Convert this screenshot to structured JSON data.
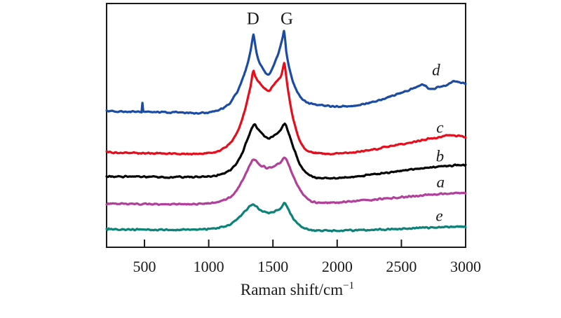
{
  "chart_data": {
    "type": "line",
    "description": "Raman spectra of five samples (a-e) showing D and G bands, stacked vertically with arbitrary intensity offsets; no y-axis ticks or labels.",
    "xlabel": "Raman shift/cm",
    "xlabel_superscript": "−1",
    "x_range": [
      205,
      3000
    ],
    "x_ticks": [
      500,
      1000,
      1500,
      2000,
      2500,
      3000
    ],
    "frame_color": "#1a1a1a",
    "peak_annotations": [
      {
        "label": "D",
        "raman_shift": 1345,
        "label_u": 0.937
      },
      {
        "label": "G",
        "raman_shift": 1608,
        "label_u": 0.937
      }
    ],
    "series": [
      {
        "name": "e",
        "color": "#0d8278",
        "label_raman": 2795,
        "label_u": 0.129,
        "points": [
          [
            205,
            0.074
          ],
          [
            400,
            0.073
          ],
          [
            600,
            0.072
          ],
          [
            800,
            0.072
          ],
          [
            1000,
            0.075
          ],
          [
            1100,
            0.082
          ],
          [
            1180,
            0.098
          ],
          [
            1250,
            0.13
          ],
          [
            1300,
            0.158
          ],
          [
            1348,
            0.174
          ],
          [
            1395,
            0.155
          ],
          [
            1440,
            0.145
          ],
          [
            1472,
            0.142
          ],
          [
            1520,
            0.15
          ],
          [
            1560,
            0.16
          ],
          [
            1592,
            0.18
          ],
          [
            1625,
            0.15
          ],
          [
            1668,
            0.112
          ],
          [
            1730,
            0.082
          ],
          [
            1810,
            0.07
          ],
          [
            1920,
            0.068
          ],
          [
            2100,
            0.069
          ],
          [
            2300,
            0.072
          ],
          [
            2500,
            0.076
          ],
          [
            2700,
            0.08
          ],
          [
            2900,
            0.084
          ],
          [
            3000,
            0.084
          ]
        ]
      },
      {
        "name": "a",
        "color": "#b0409a",
        "label_raman": 2805,
        "label_u": 0.267,
        "points": [
          [
            205,
            0.179
          ],
          [
            400,
            0.178
          ],
          [
            600,
            0.177
          ],
          [
            800,
            0.177
          ],
          [
            1000,
            0.18
          ],
          [
            1100,
            0.19
          ],
          [
            1180,
            0.212
          ],
          [
            1250,
            0.26
          ],
          [
            1300,
            0.315
          ],
          [
            1350,
            0.359
          ],
          [
            1395,
            0.34
          ],
          [
            1440,
            0.328
          ],
          [
            1472,
            0.325
          ],
          [
            1520,
            0.337
          ],
          [
            1560,
            0.348
          ],
          [
            1592,
            0.368
          ],
          [
            1625,
            0.335
          ],
          [
            1665,
            0.285
          ],
          [
            1725,
            0.225
          ],
          [
            1800,
            0.19
          ],
          [
            1900,
            0.183
          ],
          [
            2050,
            0.186
          ],
          [
            2250,
            0.194
          ],
          [
            2450,
            0.203
          ],
          [
            2650,
            0.212
          ],
          [
            2850,
            0.22
          ],
          [
            3000,
            0.222
          ]
        ]
      },
      {
        "name": "b",
        "color": "#050505",
        "label_raman": 2800,
        "label_u": 0.374,
        "points": [
          [
            205,
            0.291
          ],
          [
            400,
            0.29
          ],
          [
            600,
            0.288
          ],
          [
            800,
            0.288
          ],
          [
            1000,
            0.291
          ],
          [
            1100,
            0.3
          ],
          [
            1180,
            0.322
          ],
          [
            1250,
            0.375
          ],
          [
            1300,
            0.44
          ],
          [
            1350,
            0.501
          ],
          [
            1390,
            0.48
          ],
          [
            1440,
            0.455
          ],
          [
            1472,
            0.447
          ],
          [
            1520,
            0.465
          ],
          [
            1560,
            0.48
          ],
          [
            1592,
            0.507
          ],
          [
            1620,
            0.47
          ],
          [
            1660,
            0.41
          ],
          [
            1720,
            0.33
          ],
          [
            1800,
            0.292
          ],
          [
            1900,
            0.283
          ],
          [
            2050,
            0.285
          ],
          [
            2200,
            0.293
          ],
          [
            2400,
            0.307
          ],
          [
            2600,
            0.32
          ],
          [
            2800,
            0.331
          ],
          [
            2950,
            0.337
          ],
          [
            3000,
            0.336
          ]
        ]
      },
      {
        "name": "c",
        "color": "#e60e1d",
        "label_raman": 2800,
        "label_u": 0.491,
        "points": [
          [
            205,
            0.39
          ],
          [
            350,
            0.388
          ],
          [
            500,
            0.386
          ],
          [
            700,
            0.384
          ],
          [
            850,
            0.383
          ],
          [
            1000,
            0.386
          ],
          [
            1080,
            0.395
          ],
          [
            1150,
            0.42
          ],
          [
            1220,
            0.47
          ],
          [
            1280,
            0.56
          ],
          [
            1325,
            0.66
          ],
          [
            1340,
            0.706
          ],
          [
            1350,
            0.726
          ],
          [
            1362,
            0.7
          ],
          [
            1385,
            0.68
          ],
          [
            1430,
            0.655
          ],
          [
            1468,
            0.641
          ],
          [
            1510,
            0.67
          ],
          [
            1560,
            0.7
          ],
          [
            1578,
            0.733
          ],
          [
            1588,
            0.755
          ],
          [
            1600,
            0.715
          ],
          [
            1615,
            0.655
          ],
          [
            1650,
            0.545
          ],
          [
            1700,
            0.45
          ],
          [
            1760,
            0.398
          ],
          [
            1850,
            0.386
          ],
          [
            1950,
            0.384
          ],
          [
            2100,
            0.388
          ],
          [
            2250,
            0.398
          ],
          [
            2400,
            0.413
          ],
          [
            2550,
            0.428
          ],
          [
            2700,
            0.443
          ],
          [
            2850,
            0.457
          ],
          [
            2930,
            0.458
          ],
          [
            3000,
            0.45
          ]
        ]
      },
      {
        "name": "d",
        "color": "#1c4ba3",
        "label_raman": 2770,
        "label_u": 0.727,
        "points": [
          [
            205,
            0.558
          ],
          [
            300,
            0.556
          ],
          [
            420,
            0.556
          ],
          [
            470,
            0.557
          ],
          [
            478,
            0.56
          ],
          [
            484,
            0.594
          ],
          [
            490,
            0.56
          ],
          [
            500,
            0.556
          ],
          [
            600,
            0.554
          ],
          [
            750,
            0.553
          ],
          [
            900,
            0.551
          ],
          [
            1000,
            0.553
          ],
          [
            1080,
            0.563
          ],
          [
            1150,
            0.585
          ],
          [
            1220,
            0.635
          ],
          [
            1280,
            0.715
          ],
          [
            1320,
            0.79
          ],
          [
            1338,
            0.843
          ],
          [
            1348,
            0.875
          ],
          [
            1358,
            0.843
          ],
          [
            1380,
            0.78
          ],
          [
            1420,
            0.733
          ],
          [
            1462,
            0.708
          ],
          [
            1500,
            0.74
          ],
          [
            1545,
            0.8
          ],
          [
            1578,
            0.865
          ],
          [
            1586,
            0.886
          ],
          [
            1596,
            0.845
          ],
          [
            1610,
            0.78
          ],
          [
            1650,
            0.69
          ],
          [
            1700,
            0.628
          ],
          [
            1760,
            0.596
          ],
          [
            1850,
            0.583
          ],
          [
            1950,
            0.579
          ],
          [
            2050,
            0.578
          ],
          [
            2150,
            0.581
          ],
          [
            2250,
            0.592
          ],
          [
            2350,
            0.607
          ],
          [
            2450,
            0.625
          ],
          [
            2550,
            0.643
          ],
          [
            2620,
            0.658
          ],
          [
            2672,
            0.668
          ],
          [
            2725,
            0.649
          ],
          [
            2800,
            0.658
          ],
          [
            2860,
            0.668
          ],
          [
            2915,
            0.681
          ],
          [
            2960,
            0.674
          ],
          [
            3000,
            0.67
          ]
        ]
      }
    ]
  }
}
